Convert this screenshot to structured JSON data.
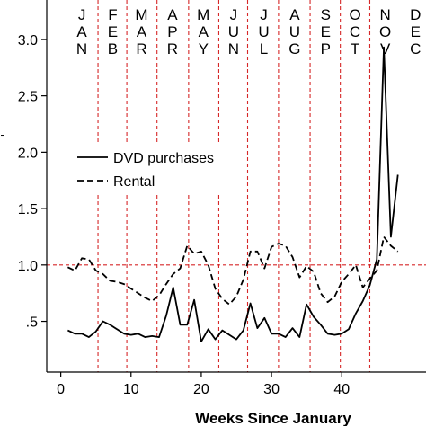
{
  "chart_data": {
    "type": "line",
    "title": "",
    "xlabel": "Weeks Since January",
    "ylabel": "",
    "xlim": [
      -2,
      52
    ],
    "ylim": [
      0.05,
      3.35
    ],
    "x_ticks": [
      {
        "value": 0,
        "label": "0"
      },
      {
        "value": 10,
        "label": "10"
      },
      {
        "value": 20,
        "label": "20"
      },
      {
        "value": 30,
        "label": "30"
      },
      {
        "value": 40,
        "label": "40"
      }
    ],
    "y_ticks": [
      {
        "value": 0.5,
        "label": ".5"
      },
      {
        "value": 1.0,
        "label": "1.0"
      },
      {
        "value": 1.5,
        "label": "1.5"
      },
      {
        "value": 2.0,
        "label": "2.0"
      },
      {
        "value": 2.5,
        "label": "2.5"
      },
      {
        "value": 3.0,
        "label": "3.0"
      }
    ],
    "reference_line": {
      "y": 1.0,
      "color": "#d62728",
      "style": "dashed"
    },
    "month_boundaries": [
      5.3,
      9.4,
      13.7,
      18.2,
      22.5,
      26.6,
      31.0,
      35.5,
      39.8,
      44.0
    ],
    "months": [
      {
        "label": "JAN",
        "x": 3.0
      },
      {
        "label": "FEB",
        "x": 7.4
      },
      {
        "label": "MAR",
        "x": 11.5
      },
      {
        "label": "APR",
        "x": 15.9
      },
      {
        "label": "MAY",
        "x": 20.3
      },
      {
        "label": "JUN",
        "x": 24.6
      },
      {
        "label": "JUL",
        "x": 28.9
      },
      {
        "label": "AUG",
        "x": 33.3
      },
      {
        "label": "SEP",
        "x": 37.7
      },
      {
        "label": "OCT",
        "x": 41.9
      },
      {
        "label": "NOV",
        "x": 46.2
      },
      {
        "label": "DEC",
        "x": 50.5
      }
    ],
    "legend": {
      "position": "left-middle",
      "entries": [
        "DVD purchases",
        "Rental"
      ]
    },
    "series": [
      {
        "name": "DVD purchases",
        "style": "solid",
        "color": "#000000",
        "x": [
          1,
          2,
          3,
          4,
          5,
          6,
          7,
          8,
          9,
          10,
          11,
          12,
          13,
          14,
          15,
          16,
          17,
          18,
          19,
          20,
          21,
          22,
          23,
          24,
          25,
          26,
          27,
          28,
          29,
          30,
          31,
          32,
          33,
          34,
          35,
          36,
          37,
          38,
          39,
          40,
          41,
          42,
          43,
          44,
          45,
          46,
          47,
          48
        ],
        "values": [
          0.42,
          0.39,
          0.39,
          0.36,
          0.41,
          0.5,
          0.47,
          0.43,
          0.39,
          0.38,
          0.39,
          0.36,
          0.37,
          0.36,
          0.55,
          0.8,
          0.47,
          0.47,
          0.69,
          0.32,
          0.43,
          0.34,
          0.42,
          0.38,
          0.34,
          0.42,
          0.66,
          0.44,
          0.53,
          0.39,
          0.39,
          0.36,
          0.44,
          0.36,
          0.65,
          0.54,
          0.47,
          0.39,
          0.38,
          0.39,
          0.43,
          0.57,
          0.68,
          0.82,
          1.05,
          2.93,
          1.25,
          1.8
        ]
      },
      {
        "name": "Rental",
        "style": "dashed",
        "color": "#000000",
        "x": [
          1,
          2,
          3,
          4,
          5,
          6,
          7,
          8,
          9,
          10,
          11,
          12,
          13,
          14,
          15,
          16,
          17,
          18,
          19,
          20,
          21,
          22,
          23,
          24,
          25,
          26,
          27,
          28,
          29,
          30,
          31,
          32,
          33,
          34,
          35,
          36,
          37,
          38,
          39,
          40,
          41,
          42,
          43,
          44,
          45,
          46,
          47,
          48
        ],
        "values": [
          0.98,
          0.95,
          1.06,
          1.05,
          0.95,
          0.92,
          0.86,
          0.85,
          0.83,
          0.79,
          0.75,
          0.71,
          0.68,
          0.73,
          0.83,
          0.92,
          0.97,
          1.17,
          1.1,
          1.12,
          1.0,
          0.79,
          0.7,
          0.65,
          0.72,
          0.87,
          1.12,
          1.12,
          0.97,
          1.16,
          1.19,
          1.17,
          1.07,
          0.89,
          0.99,
          0.94,
          0.75,
          0.67,
          0.72,
          0.85,
          0.92,
          1.0,
          0.8,
          0.88,
          0.95,
          1.25,
          1.17,
          1.12
        ]
      }
    ]
  }
}
